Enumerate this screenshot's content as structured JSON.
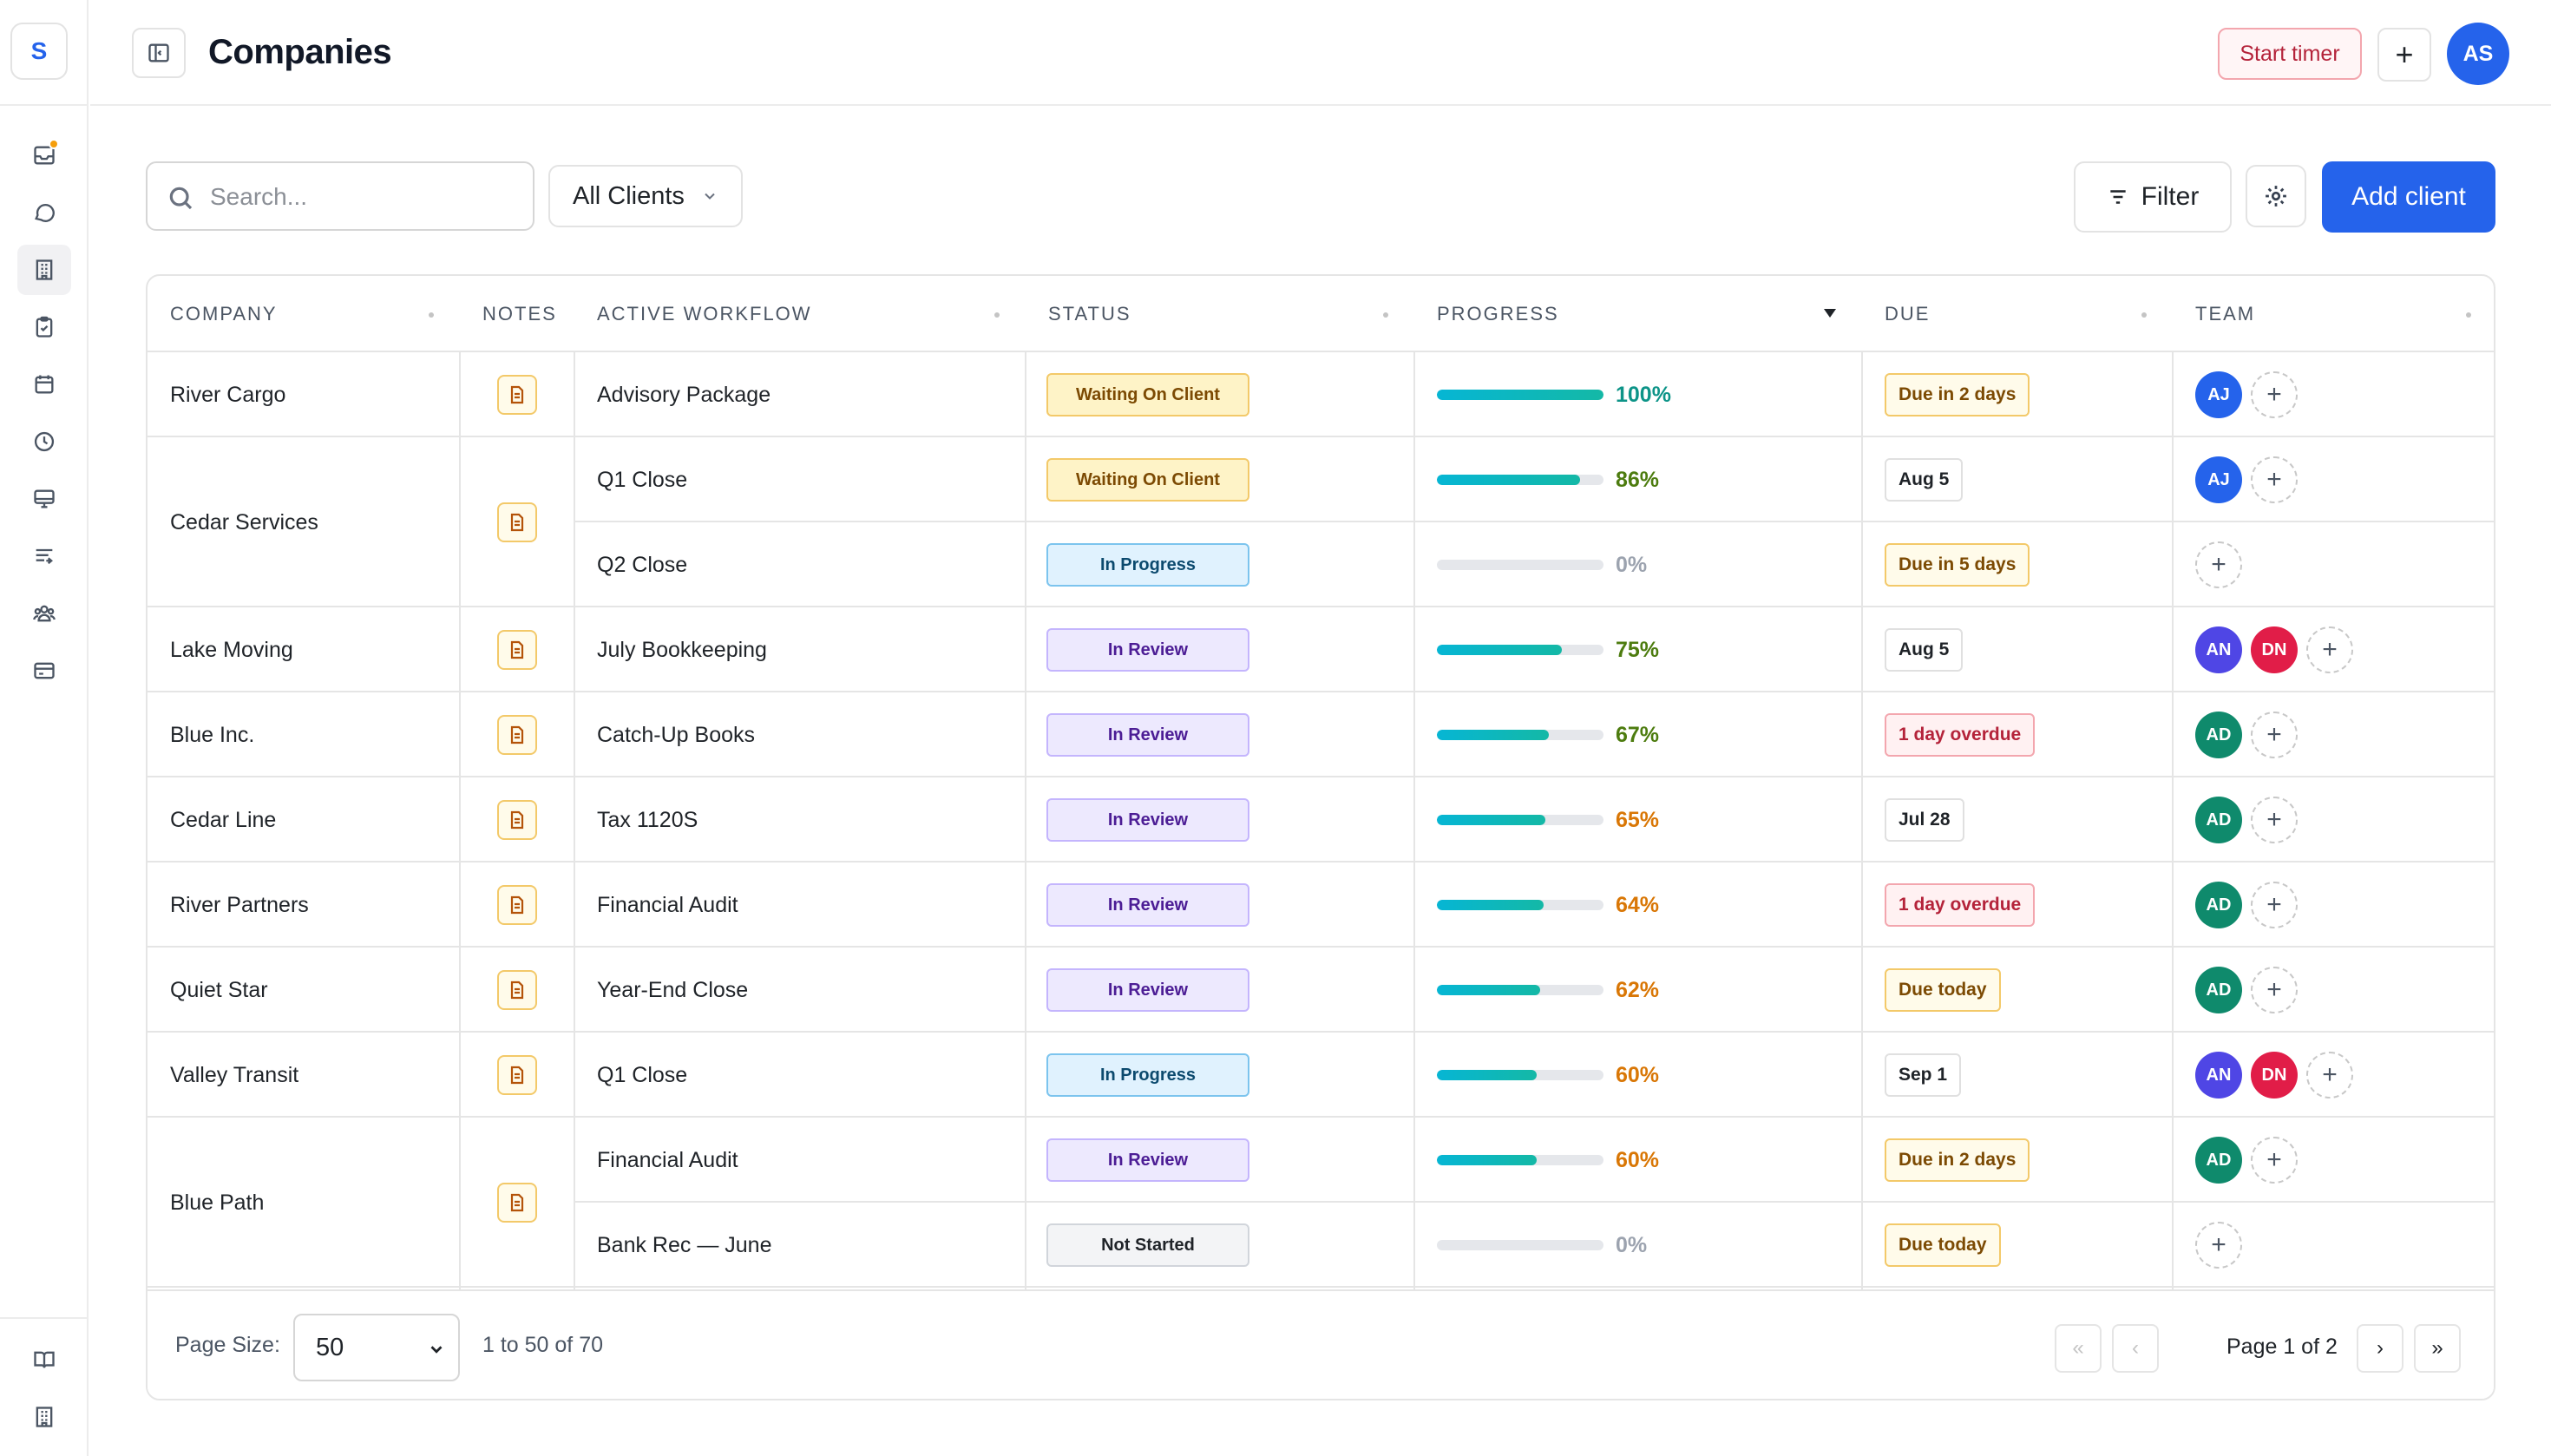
{
  "app": {
    "logo_letter": "S"
  },
  "header": {
    "title": "Companies",
    "start_timer_label": "Start timer",
    "add_label": "+",
    "user_initials": "AS"
  },
  "toolbar": {
    "search_placeholder": "Search...",
    "client_filter_value": "All Clients",
    "filter_label": "Filter",
    "add_client_label": "Add client"
  },
  "table": {
    "columns": {
      "company": "COMPANY",
      "notes": "NOTES",
      "workflow": "ACTIVE WORKFLOW",
      "status": "STATUS",
      "progress": "PROGRESS",
      "due": "DUE",
      "team": "TEAM"
    },
    "groups": [
      {
        "company": "River Cargo",
        "rows": [
          {
            "workflow": "Advisory Package",
            "status": "Waiting On Client",
            "status_kind": "waiting",
            "progress": 100,
            "progress_label": "100%",
            "progress_color": "#0d9488",
            "due": "Due in 2 days",
            "due_kind": "yellow",
            "team": [
              {
                "initials": "AJ",
                "color": "#2563eb"
              }
            ]
          }
        ]
      },
      {
        "company": "Cedar Services",
        "rows": [
          {
            "workflow": "Q1 Close",
            "status": "Waiting On Client",
            "status_kind": "waiting",
            "progress": 86,
            "progress_label": "86%",
            "progress_color": "#4d7c0f",
            "due": "Aug 5",
            "due_kind": "gray",
            "team": [
              {
                "initials": "AJ",
                "color": "#2563eb"
              }
            ]
          },
          {
            "workflow": "Q2 Close",
            "status": "In Progress",
            "status_kind": "progress",
            "progress": 0,
            "progress_label": "0%",
            "progress_color": "#9ca3af",
            "due": "Due in 5 days",
            "due_kind": "yellow",
            "team": []
          }
        ]
      },
      {
        "company": "Lake Moving",
        "rows": [
          {
            "workflow": "July Bookkeeping",
            "status": "In Review",
            "status_kind": "review",
            "progress": 75,
            "progress_label": "75%",
            "progress_color": "#4d7c0f",
            "due": "Aug 5",
            "due_kind": "gray",
            "team": [
              {
                "initials": "AN",
                "color": "#4f46e5"
              },
              {
                "initials": "DN",
                "color": "#e11d48"
              }
            ]
          }
        ]
      },
      {
        "company": "Blue Inc.",
        "rows": [
          {
            "workflow": "Catch-Up Books",
            "status": "In Review",
            "status_kind": "review",
            "progress": 67,
            "progress_label": "67%",
            "progress_color": "#4d7c0f",
            "due": "1 day overdue",
            "due_kind": "red",
            "team": [
              {
                "initials": "AD",
                "color": "#0f8a6c"
              }
            ]
          }
        ]
      },
      {
        "company": "Cedar Line",
        "rows": [
          {
            "workflow": "Tax 1120S",
            "status": "In Review",
            "status_kind": "review",
            "progress": 65,
            "progress_label": "65%",
            "progress_color": "#d97706",
            "due": "Jul 28",
            "due_kind": "gray",
            "team": [
              {
                "initials": "AD",
                "color": "#0f8a6c"
              }
            ]
          }
        ]
      },
      {
        "company": "River Partners",
        "rows": [
          {
            "workflow": "Financial Audit",
            "status": "In Review",
            "status_kind": "review",
            "progress": 64,
            "progress_label": "64%",
            "progress_color": "#d97706",
            "due": "1 day overdue",
            "due_kind": "red",
            "team": [
              {
                "initials": "AD",
                "color": "#0f8a6c"
              }
            ]
          }
        ]
      },
      {
        "company": "Quiet Star",
        "rows": [
          {
            "workflow": "Year-End Close",
            "status": "In Review",
            "status_kind": "review",
            "progress": 62,
            "progress_label": "62%",
            "progress_color": "#d97706",
            "due": "Due today",
            "due_kind": "yellow",
            "team": [
              {
                "initials": "AD",
                "color": "#0f8a6c"
              }
            ]
          }
        ]
      },
      {
        "company": "Valley Transit",
        "rows": [
          {
            "workflow": "Q1 Close",
            "status": "In Progress",
            "status_kind": "progress",
            "progress": 60,
            "progress_label": "60%",
            "progress_color": "#d97706",
            "due": "Sep 1",
            "due_kind": "gray",
            "team": [
              {
                "initials": "AN",
                "color": "#4f46e5"
              },
              {
                "initials": "DN",
                "color": "#e11d48"
              }
            ]
          }
        ]
      },
      {
        "company": "Blue Path",
        "rows": [
          {
            "workflow": "Financial Audit",
            "status": "In Review",
            "status_kind": "review",
            "progress": 60,
            "progress_label": "60%",
            "progress_color": "#d97706",
            "due": "Due in 2 days",
            "due_kind": "yellow",
            "team": [
              {
                "initials": "AD",
                "color": "#0f8a6c"
              }
            ]
          },
          {
            "workflow": "Bank Rec — June",
            "status": "Not Started",
            "status_kind": "notstarted",
            "progress": 0,
            "progress_label": "0%",
            "progress_color": "#9ca3af",
            "due": "Due today",
            "due_kind": "yellow",
            "team": []
          }
        ]
      }
    ]
  },
  "pagination": {
    "page_size_label": "Page Size:",
    "page_size_value": "50",
    "range_text": "1 to 50 of 70",
    "first_label": "«",
    "prev_label": "‹",
    "page_text": "Page 1 of 2",
    "next_label": "›",
    "last_label": "»"
  }
}
